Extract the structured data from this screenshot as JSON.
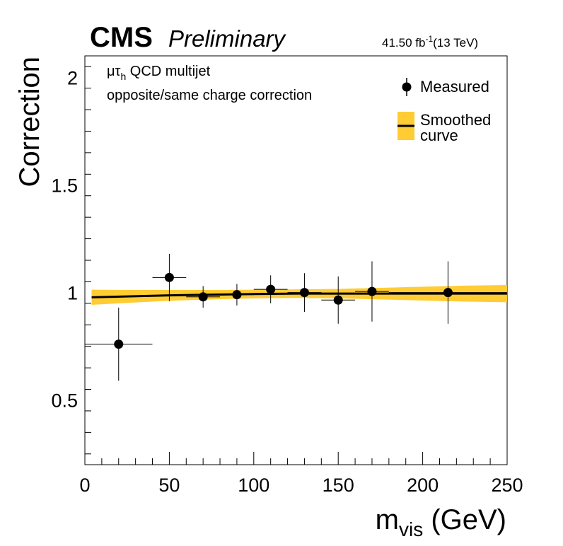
{
  "header": {
    "experiment": "CMS",
    "status": "Preliminary",
    "lumi_value": "41.50 fb",
    "lumi_exp": "-1",
    "energy": "(13 TeV)"
  },
  "annotation": {
    "channel_mu": "μτ",
    "channel_sub": "h",
    "channel_rest": " QCD multijet",
    "line2": "opposite/same charge correction"
  },
  "legend": {
    "measured": "Measured",
    "smoothed_line1": "Smoothed",
    "smoothed_line2": "curve",
    "placement": "top-right"
  },
  "axes": {
    "ylabel": "Correction",
    "xlabel_main": "m",
    "xlabel_sub": "vis",
    "xlabel_unit": " (GeV)"
  },
  "colors": {
    "band": "#ffcc33",
    "line": "#000000",
    "marker": "#000000"
  },
  "chart_data": {
    "type": "scatter",
    "xlim": [
      0,
      250
    ],
    "ylim": [
      0.2,
      2.1
    ],
    "xticks": [
      0,
      50,
      100,
      150,
      200,
      250
    ],
    "xtick_labels": [
      "0",
      "50",
      "100",
      "150",
      "200",
      "250"
    ],
    "yticks": [
      0.5,
      1,
      1.5,
      2
    ],
    "ytick_labels": [
      "0.5",
      "1",
      "1.5",
      "2"
    ],
    "grid": false,
    "series": [
      {
        "name": "Measured",
        "kind": "points_with_errors",
        "points": [
          {
            "x": 20,
            "xerr": 20,
            "y": 0.76,
            "yerr": 0.17
          },
          {
            "x": 50,
            "xerr": 10,
            "y": 1.07,
            "yerr": 0.11
          },
          {
            "x": 70,
            "xerr": 10,
            "y": 0.98,
            "yerr": 0.05
          },
          {
            "x": 90,
            "xerr": 10,
            "y": 0.99,
            "yerr": 0.05
          },
          {
            "x": 110,
            "xerr": 10,
            "y": 1.015,
            "yerr": 0.065
          },
          {
            "x": 130,
            "xerr": 10,
            "y": 1.0,
            "yerr": 0.09
          },
          {
            "x": 150,
            "xerr": 10,
            "y": 0.965,
            "yerr": 0.11
          },
          {
            "x": 170,
            "xerr": 10,
            "y": 1.005,
            "yerr": 0.14
          },
          {
            "x": 215,
            "xerr": 35,
            "y": 1.0,
            "yerr": 0.145
          }
        ]
      },
      {
        "name": "Smoothed curve",
        "kind": "line_with_band",
        "x": [
          4,
          25,
          50,
          75,
          100,
          125,
          150,
          175,
          200,
          225,
          250
        ],
        "y": [
          0.978,
          0.982,
          0.987,
          0.99,
          0.993,
          0.995,
          0.995,
          0.995,
          0.995,
          0.995,
          0.995
        ],
        "band": [
          0.035,
          0.03,
          0.025,
          0.022,
          0.02,
          0.02,
          0.022,
          0.027,
          0.032,
          0.037,
          0.04
        ]
      }
    ]
  }
}
